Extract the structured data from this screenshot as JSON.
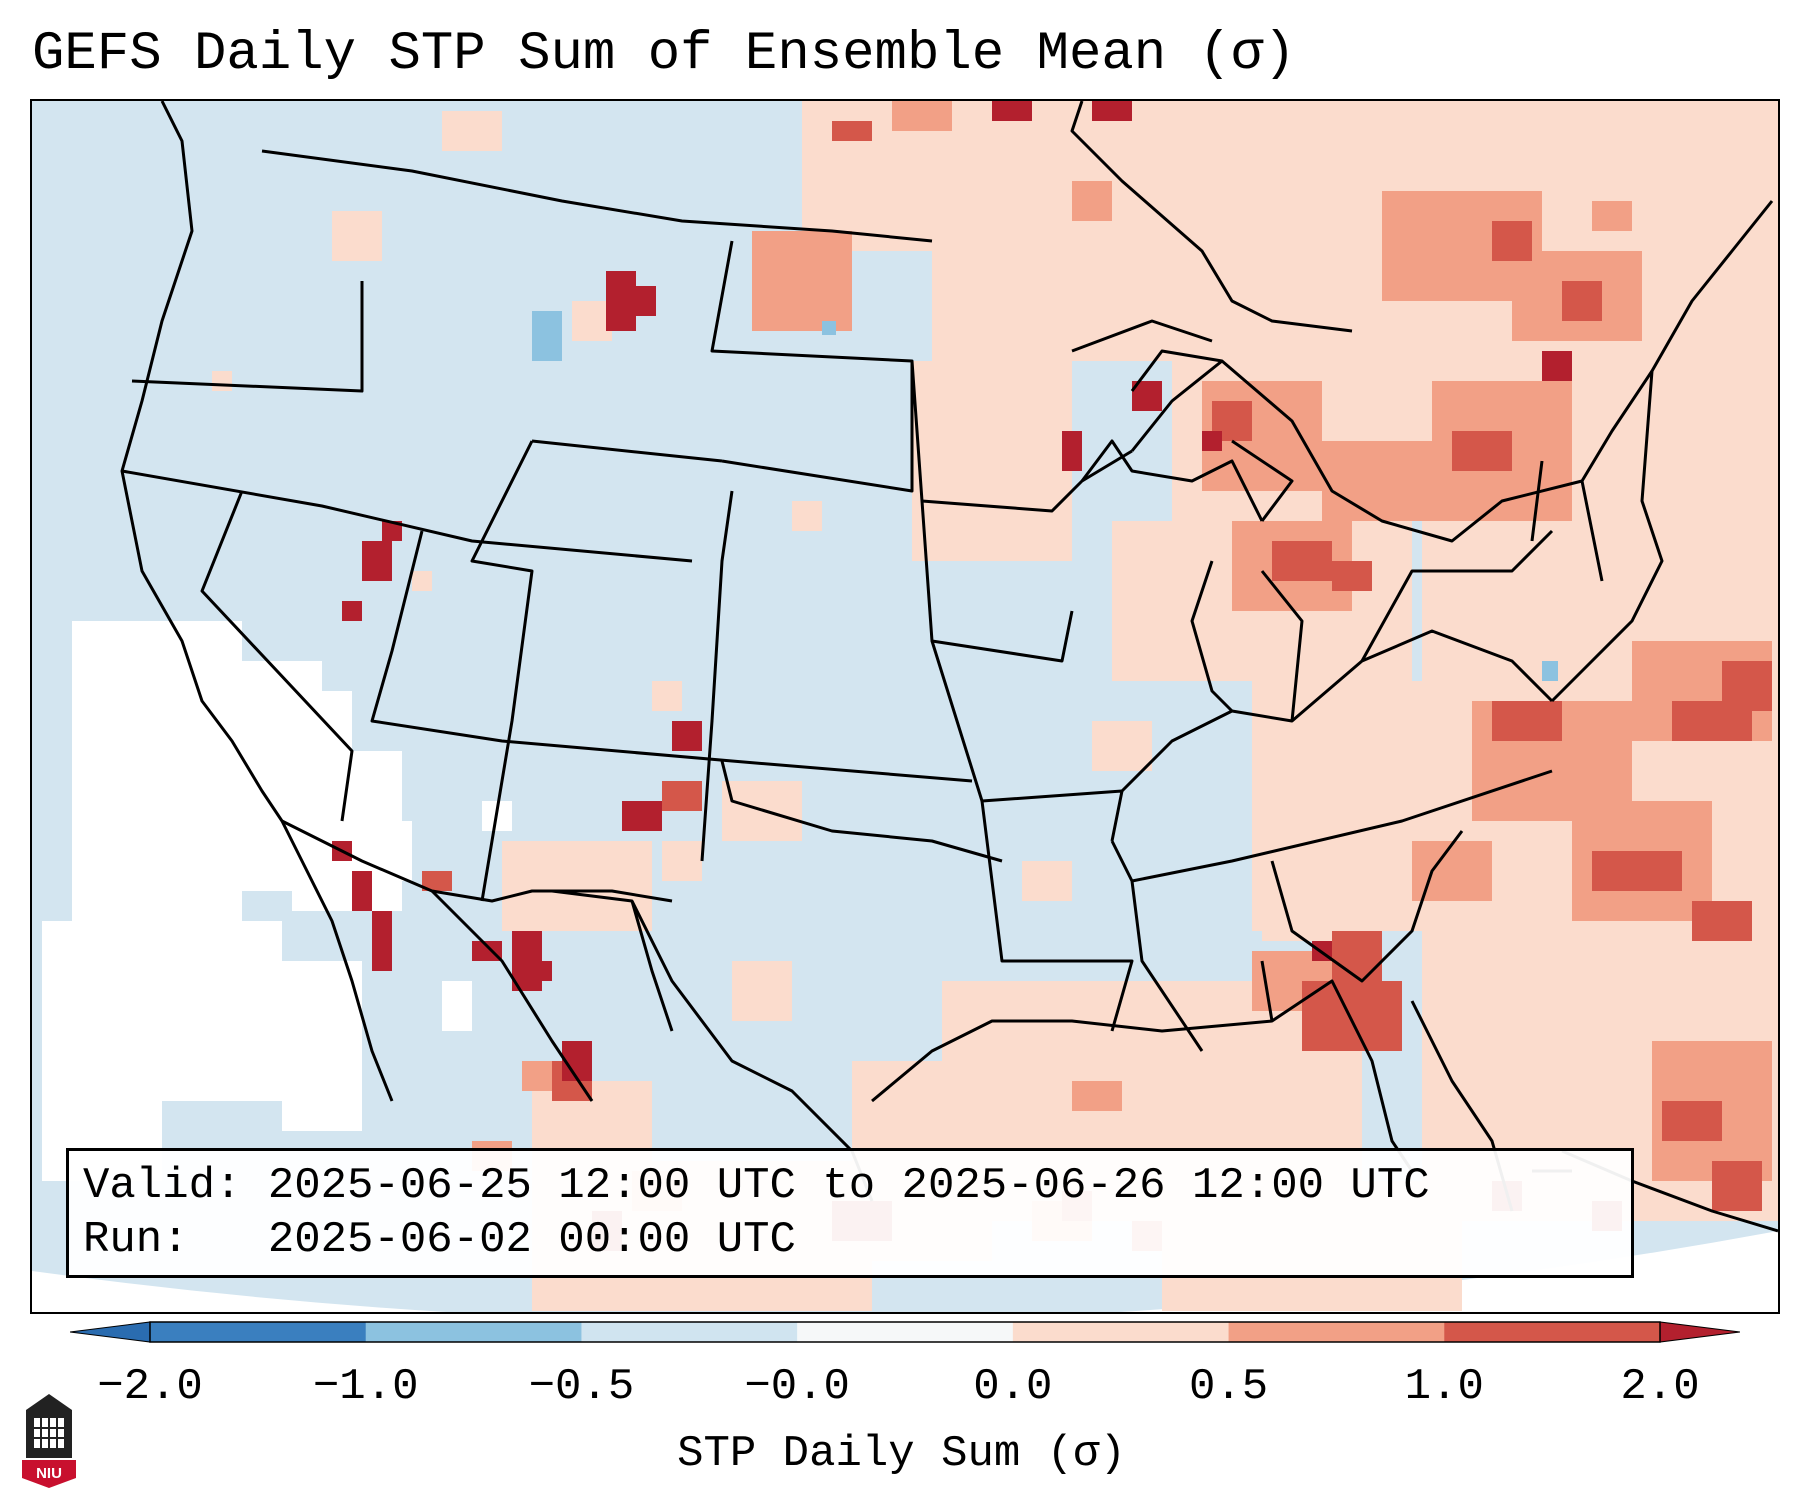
{
  "title": "GEFS Daily STP Sum of Ensemble Mean (σ)",
  "info": {
    "valid_label": "Valid:",
    "valid_value": "2025-06-25 12:00 UTC to 2025-06-26 12:00 UTC",
    "run_label": "Run:",
    "run_value": "2025-06-02 00:00 UTC"
  },
  "colorbar": {
    "label": "STP Daily Sum (σ)",
    "ticks": [
      "−2.0",
      "−1.0",
      "−0.5",
      "−0.0",
      "0.0",
      "0.5",
      "1.0",
      "2.0"
    ],
    "colors": [
      "#3a7fbf",
      "#8cc2e0",
      "#d0e4f0",
      "#f6f8f9",
      "#fbdccd",
      "#f2a086",
      "#d4574a"
    ],
    "extend_low_color": "#2a6cb0",
    "extend_high_color": "#b3202e"
  },
  "legend_colors": {
    "ocean_bg": "#d3e5f0",
    "neutral": "#ffffff",
    "weak_pos": "#fbdccd",
    "moderate_pos": "#f2a086",
    "strong_pos": "#d4574a",
    "extreme_pos": "#b3202e",
    "weak_neg": "#8cc2e0"
  },
  "logo": {
    "text": "NIU",
    "icon": "university-seal-icon"
  }
}
